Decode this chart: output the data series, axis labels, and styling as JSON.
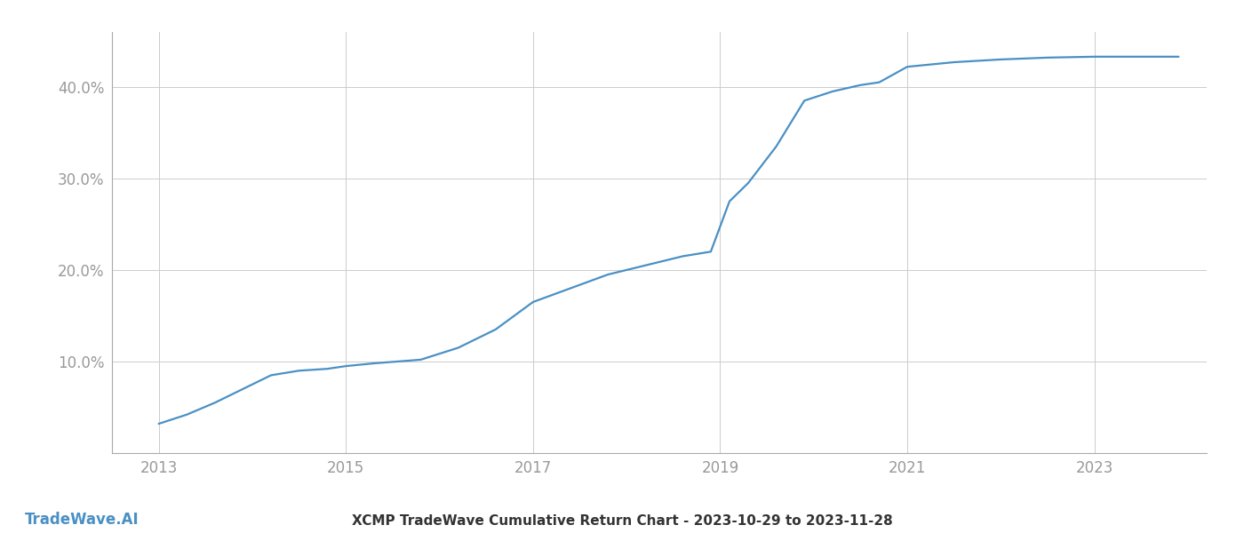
{
  "title": "XCMP TradeWave Cumulative Return Chart - 2023-10-29 to 2023-11-28",
  "watermark": "TradeWave.AI",
  "line_color": "#4a90c4",
  "background_color": "#ffffff",
  "grid_color": "#cccccc",
  "x_years": [
    2013.0,
    2013.3,
    2013.6,
    2013.9,
    2014.2,
    2014.5,
    2014.8,
    2015.0,
    2015.3,
    2015.8,
    2016.2,
    2016.6,
    2017.0,
    2017.4,
    2017.8,
    2018.2,
    2018.6,
    2018.9,
    2019.1,
    2019.3,
    2019.6,
    2019.9,
    2020.2,
    2020.5,
    2020.7,
    2021.0,
    2021.5,
    2022.0,
    2022.5,
    2023.0,
    2023.9
  ],
  "y_values": [
    3.2,
    4.2,
    5.5,
    7.0,
    8.5,
    9.0,
    9.2,
    9.5,
    9.8,
    10.2,
    11.5,
    13.5,
    16.5,
    18.0,
    19.5,
    20.5,
    21.5,
    22.0,
    27.5,
    29.5,
    33.5,
    38.5,
    39.5,
    40.2,
    40.5,
    42.2,
    42.7,
    43.0,
    43.2,
    43.3,
    43.3
  ],
  "xlim": [
    2012.5,
    2024.2
  ],
  "ylim": [
    0,
    46
  ],
  "yticks": [
    10.0,
    20.0,
    30.0,
    40.0
  ],
  "xticks": [
    2013,
    2015,
    2017,
    2019,
    2021,
    2023
  ],
  "tick_label_color": "#999999",
  "line_width": 1.6,
  "title_fontsize": 11,
  "tick_fontsize": 12,
  "watermark_fontsize": 12
}
